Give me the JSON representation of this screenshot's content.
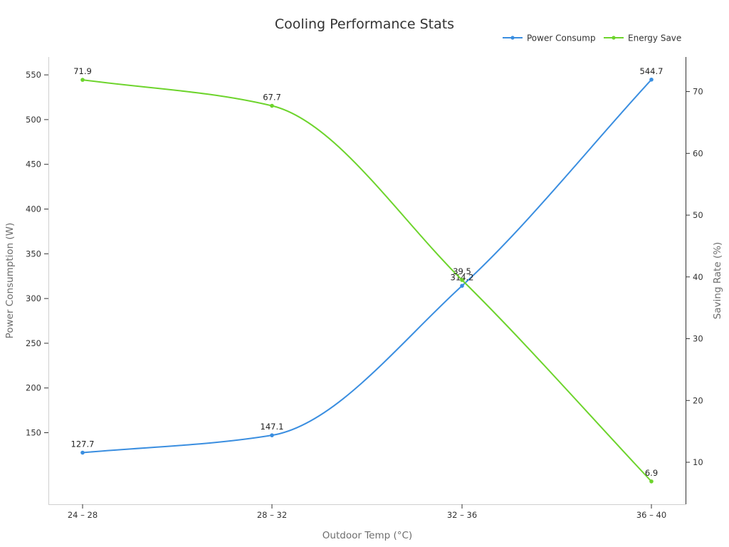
{
  "chart_data": {
    "type": "line",
    "title": "Cooling Performance Stats",
    "xlabel": "Outdoor Temp (°C)",
    "ylabel_left": "Power Consumption (W)",
    "ylabel_right": "Saving Rate (%)",
    "categories": [
      "24 – 28",
      "28 – 32",
      "32 – 36",
      "36 – 40"
    ],
    "y_left_range": [
      70,
      570
    ],
    "y_left_ticks": [
      150,
      200,
      250,
      300,
      350,
      400,
      450,
      500,
      550
    ],
    "y_right_range": [
      3.2,
      75.6
    ],
    "y_right_ticks": [
      10,
      20,
      30,
      40,
      50,
      60,
      70
    ],
    "grid": false,
    "legend_position": "top-right",
    "series": [
      {
        "name": "Power Consump",
        "axis": "left",
        "color": "#3a8ee0",
        "values": [
          127.7,
          147.1,
          314.2,
          544.7
        ],
        "labels": [
          "127.7",
          "147.1",
          "314.2",
          "544.7"
        ]
      },
      {
        "name": "Energy Save",
        "axis": "right",
        "color": "#6dd42c",
        "values": [
          71.9,
          67.7,
          39.5,
          6.9
        ],
        "labels": [
          "71.9",
          "67.7",
          "39.5",
          "6.9"
        ]
      }
    ]
  }
}
